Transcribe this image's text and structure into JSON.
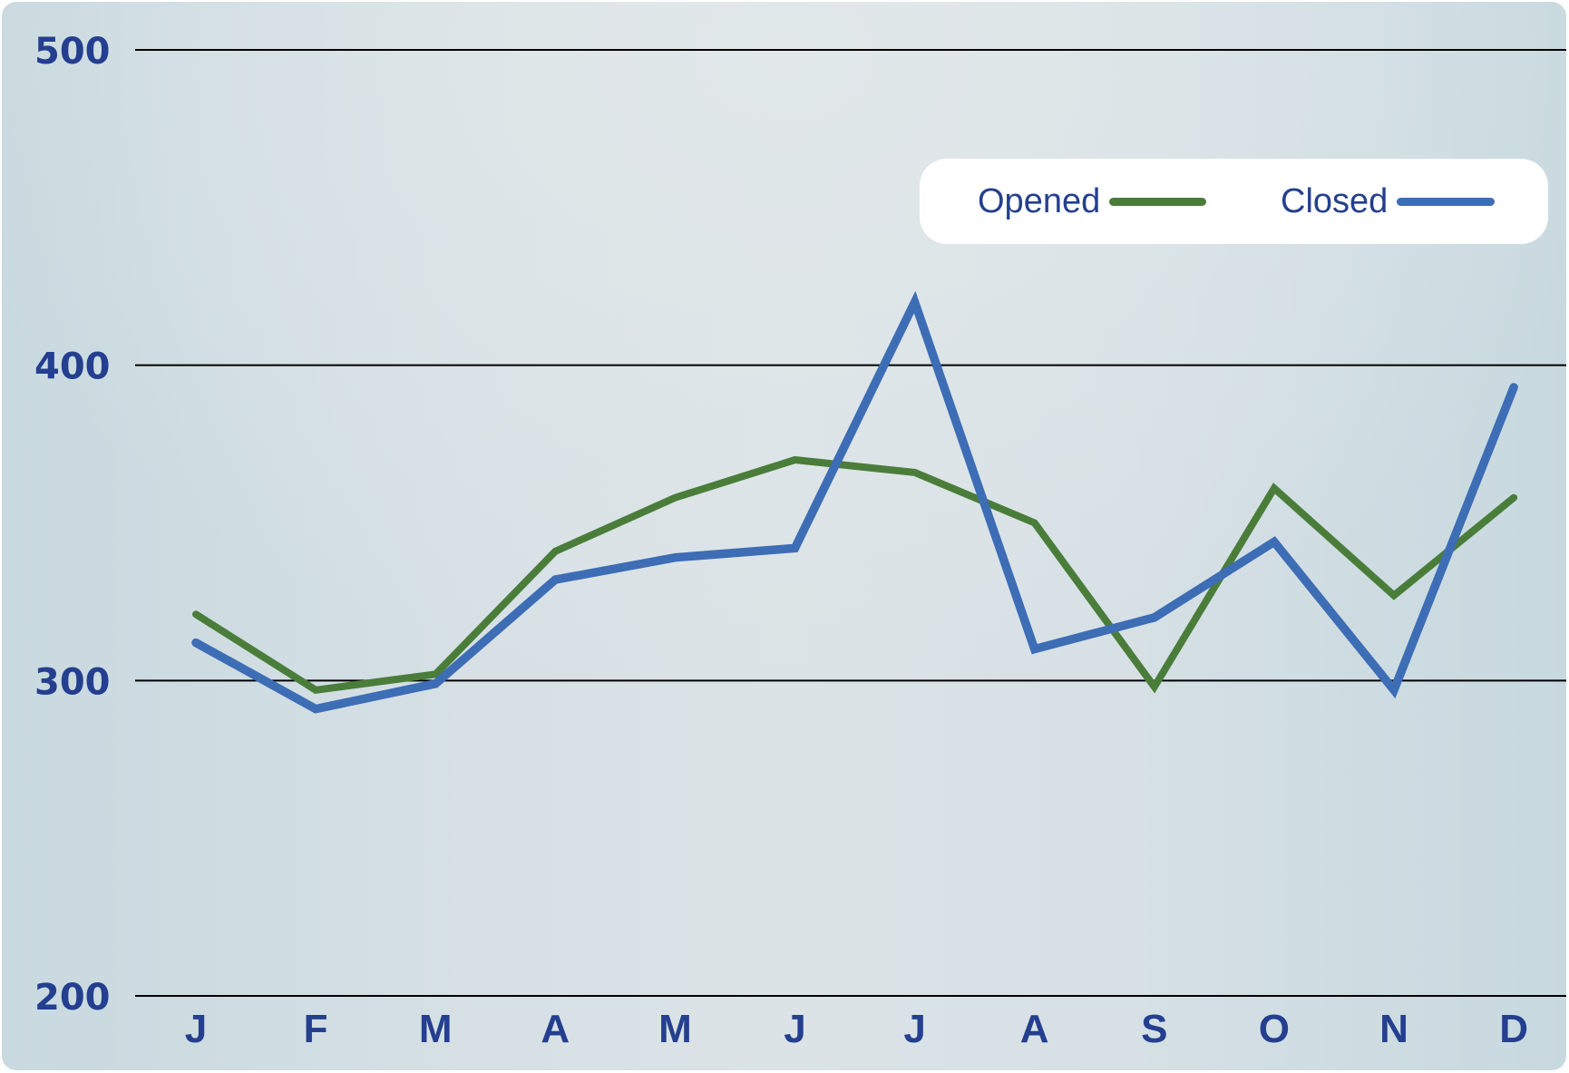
{
  "chart_data": {
    "type": "line",
    "title": "",
    "xlabel": "",
    "ylabel": "",
    "categories": [
      "J",
      "F",
      "M",
      "A",
      "M",
      "J",
      "J",
      "A",
      "S",
      "O",
      "N",
      "D"
    ],
    "series": [
      {
        "name": "Opened",
        "color": "#4a7d3a",
        "values": [
          321,
          297,
          302,
          341,
          358,
          370,
          366,
          350,
          298,
          361,
          327,
          358
        ]
      },
      {
        "name": "Closed",
        "color": "#3d6db5",
        "values": [
          312,
          291,
          299,
          332,
          339,
          342,
          420,
          310,
          320,
          344,
          297,
          393
        ]
      }
    ],
    "ylim": [
      200,
      500
    ],
    "yticks": [
      200,
      300,
      400,
      500
    ],
    "grid": true,
    "legend_position": "top-right"
  },
  "colors": {
    "axis_text": "#243f8f",
    "gridline": "#000000",
    "legend_bg": "#ffffff"
  }
}
